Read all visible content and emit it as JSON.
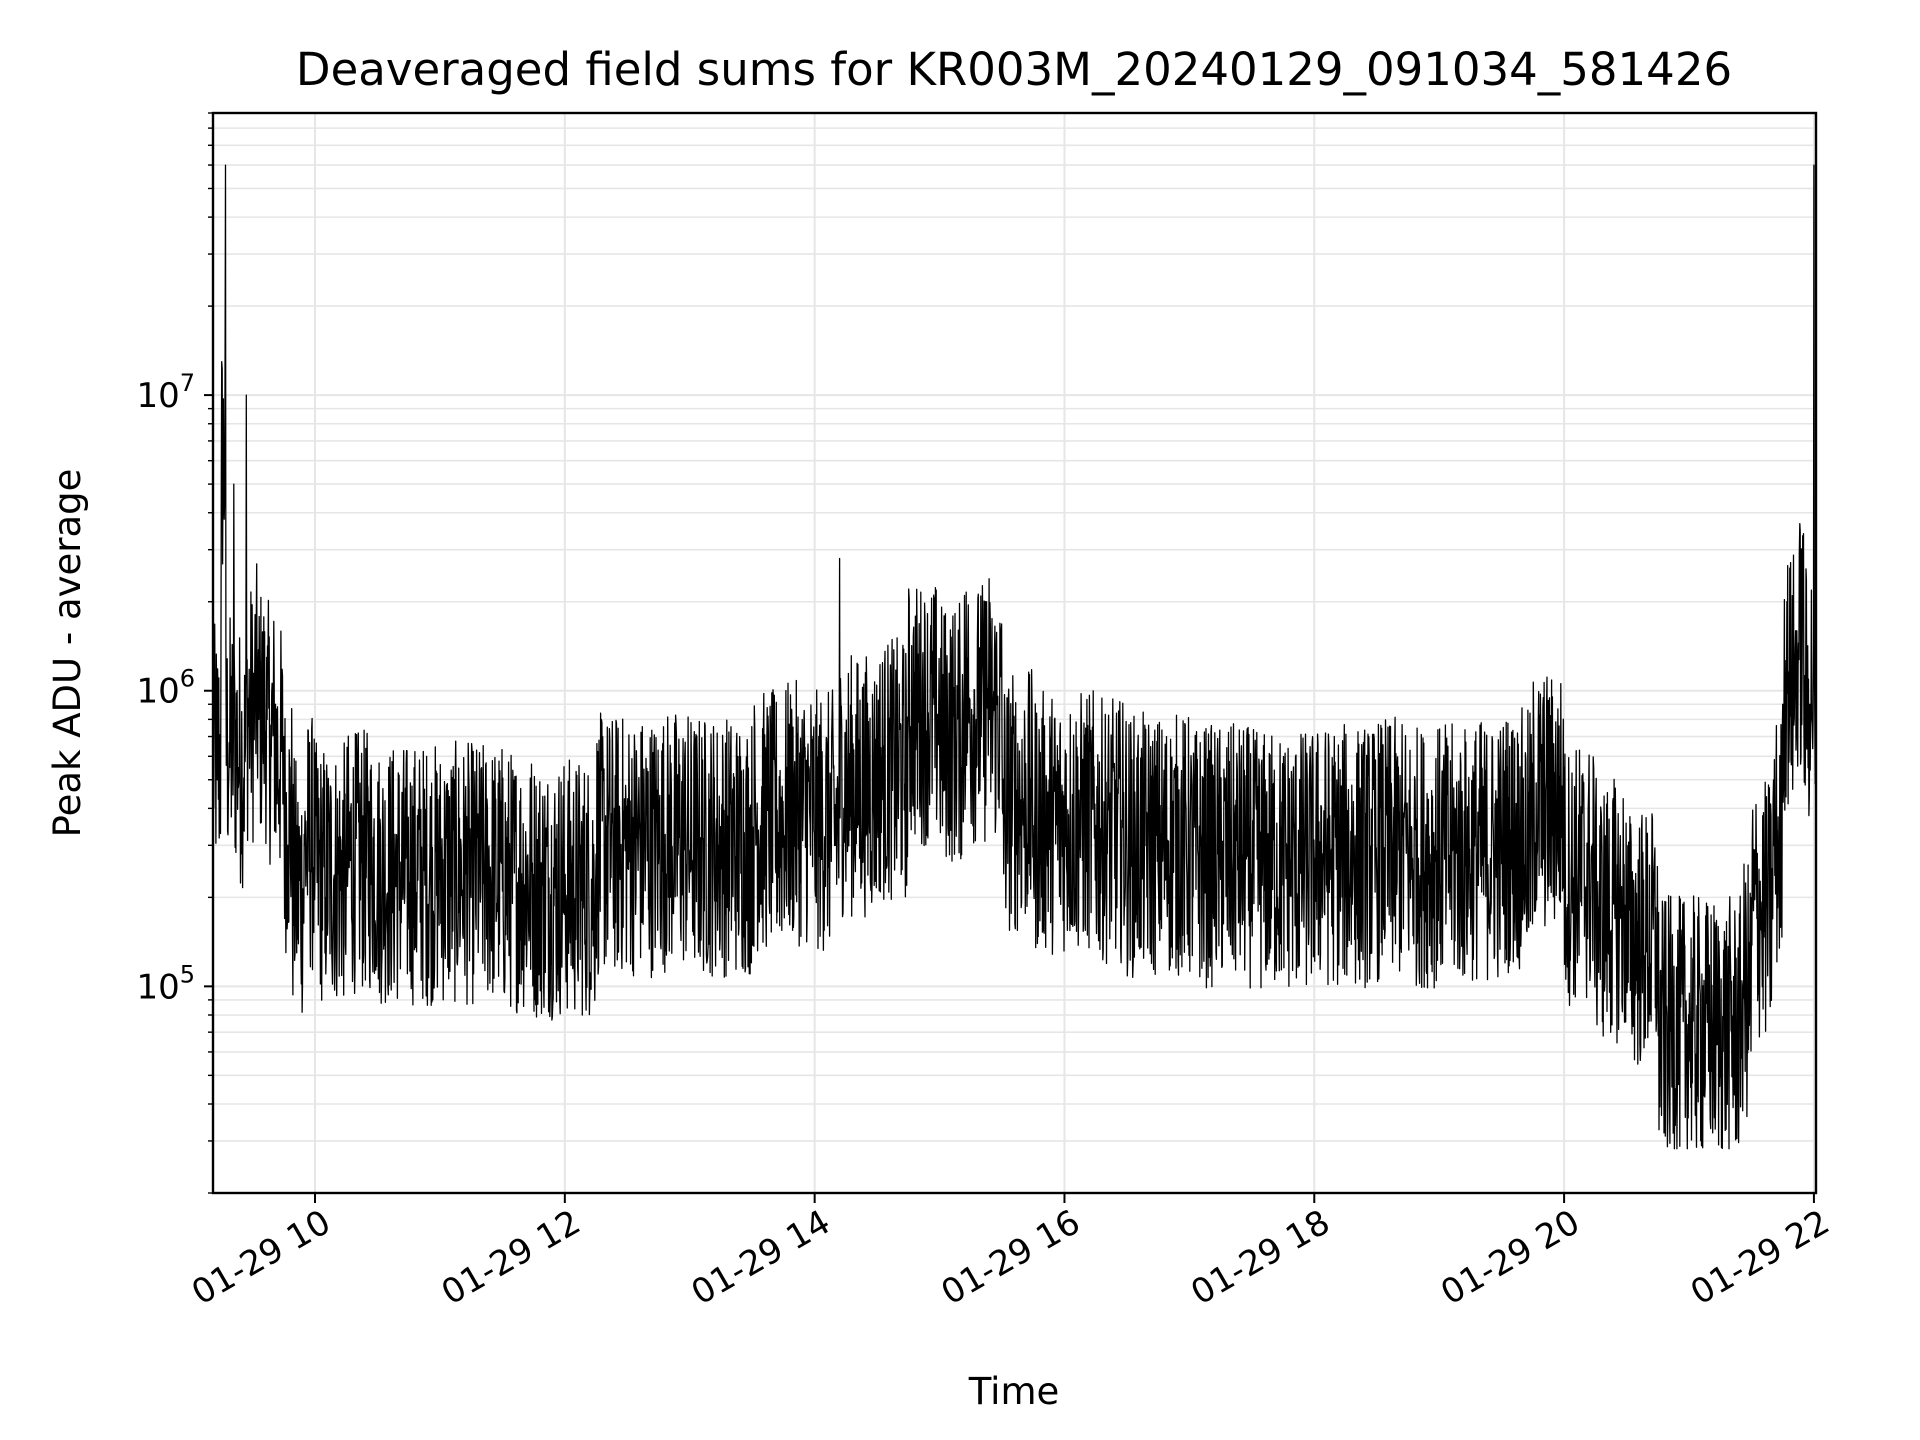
{
  "chart_data": {
    "type": "line",
    "title": "Deaveraged field sums for KR003M_20240129_091034_581426",
    "xlabel": "Time",
    "ylabel": "Peak ADU - average",
    "yscale": "log",
    "xlim": [
      "2024-01-29T09:11",
      "2024-01-29T22:01"
    ],
    "ylim": [
      20000,
      90000000
    ],
    "grid": true,
    "line_color": "#000000",
    "x_tick_labels": [
      "01-29 10",
      "01-29 12",
      "01-29 14",
      "01-29 16",
      "01-29 18",
      "01-29 20",
      "01-29 22"
    ],
    "x_tick_times": [
      "2024-01-29T10:00",
      "2024-01-29T12:00",
      "2024-01-29T14:00",
      "2024-01-29T16:00",
      "2024-01-29T18:00",
      "2024-01-29T20:00",
      "2024-01-29T22:00"
    ],
    "y_ticks": [
      {
        "base": "10",
        "exp": "5",
        "value": 100000
      },
      {
        "base": "10",
        "exp": "6",
        "value": 1000000
      },
      {
        "base": "10",
        "exp": "7",
        "value": 10000000
      }
    ],
    "series": [
      {
        "x": [
          "09:11",
          "09:13",
          "09:15",
          "09:17",
          "09:19",
          "09:21",
          "09:23",
          "09:25",
          "09:27",
          "09:29",
          "09:31",
          "09:33",
          "09:35",
          "09:37",
          "09:39",
          "09:41",
          "09:43",
          "09:45",
          "09:47",
          "09:49",
          "09:51",
          "09:55",
          "10:00",
          "10:05",
          "10:15",
          "10:30",
          "10:45",
          "11:00",
          "11:15",
          "11:30",
          "11:45",
          "12:00",
          "12:15",
          "12:30",
          "12:45",
          "13:00",
          "13:15",
          "13:30",
          "13:45",
          "14:00",
          "14:10",
          "14:12",
          "14:14",
          "14:30",
          "14:45",
          "15:00",
          "15:10",
          "15:12",
          "15:14",
          "15:20",
          "15:22",
          "15:24",
          "15:30",
          "15:45",
          "16:00",
          "16:15",
          "16:30",
          "16:45",
          "17:00",
          "17:15",
          "17:30",
          "17:45",
          "18:00",
          "18:15",
          "18:30",
          "18:45",
          "19:00",
          "19:15",
          "19:30",
          "19:45",
          "20:00",
          "20:15",
          "20:30",
          "20:45",
          "21:00",
          "21:15",
          "21:25",
          "21:30",
          "21:35",
          "21:40",
          "21:45",
          "21:47",
          "21:50",
          "21:52",
          "21:55",
          "21:56",
          "21:58",
          "22:00",
          "22:01"
        ],
        "y": [
          1000000,
          500000,
          5000000,
          60000000,
          550000,
          5000000,
          550000,
          500000,
          10000000,
          700000,
          1000000,
          800000,
          700000,
          800000,
          600000,
          900000,
          500000,
          700000,
          300000,
          400000,
          180000,
          300000,
          250000,
          200000,
          220000,
          250000,
          200000,
          230000,
          200000,
          210000,
          190000,
          180000,
          280000,
          250000,
          260000,
          270000,
          250000,
          300000,
          320000,
          330000,
          300000,
          2800000,
          400000,
          450000,
          800000,
          700000,
          600000,
          2100000,
          800000,
          700000,
          2000000,
          800000,
          700000,
          350000,
          300000,
          350000,
          280000,
          250000,
          270000,
          230000,
          240000,
          220000,
          250000,
          230000,
          240000,
          250000,
          230000,
          240000,
          260000,
          350000,
          550000,
          200000,
          150000,
          120000,
          60000,
          60000,
          80000,
          200000,
          150000,
          250000,
          900000,
          2000000,
          900000,
          1200000,
          3400000,
          800000,
          900000,
          60000000,
          500000
        ]
      }
    ]
  }
}
